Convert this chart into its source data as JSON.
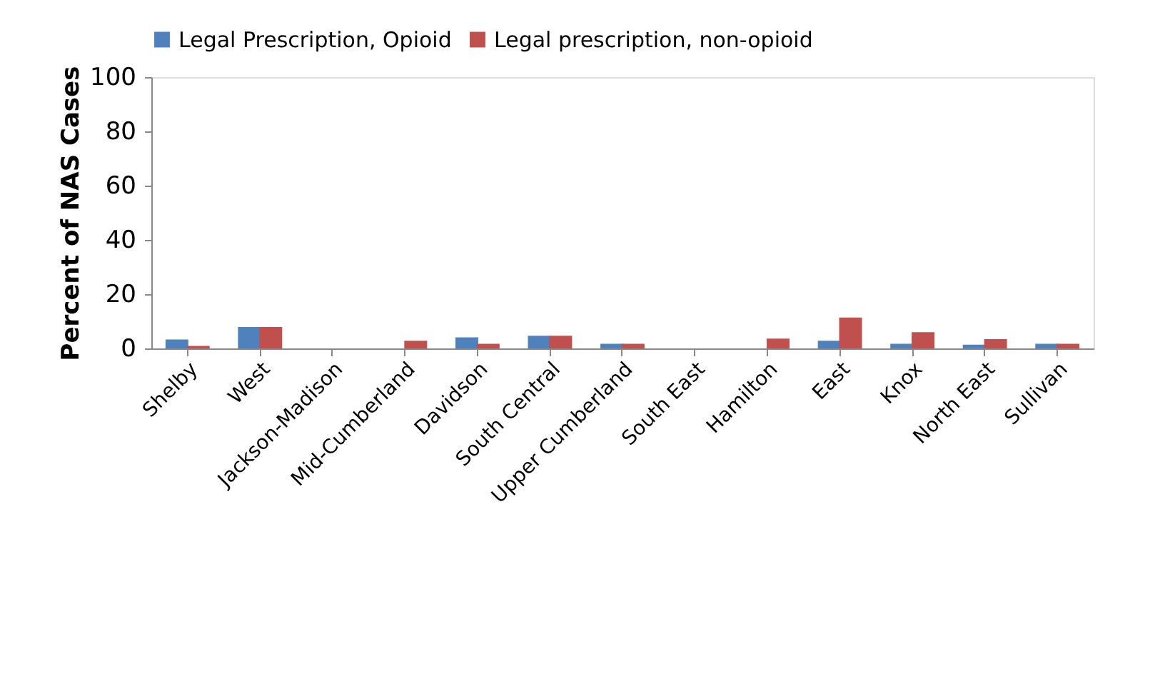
{
  "chart_data": {
    "type": "bar",
    "ylabel": "Percent of NAS Cases",
    "categories": [
      "Shelby",
      "West",
      "Jackson-Madison",
      "Mid-Cumberland",
      "Davidson",
      "South Central",
      "Upper Cumberland",
      "South East",
      "Hamilton",
      "East",
      "Knox",
      "North East",
      "Sullivan"
    ],
    "series": [
      {
        "name": "Legal Prescription, Opioid",
        "color": "#4f81bd",
        "values": [
          3.3,
          7.9,
          0,
          0,
          4.1,
          4.7,
          1.7,
          0,
          0,
          2.8,
          1.7,
          1.4,
          1.7
        ]
      },
      {
        "name": "Legal prescription, non-opioid",
        "color": "#c0504d",
        "values": [
          0.9,
          7.9,
          0,
          2.8,
          1.7,
          4.7,
          1.7,
          0,
          3.6,
          11.4,
          6.0,
          3.4,
          1.7
        ]
      }
    ],
    "ylim": [
      0,
      100
    ],
    "yticks": [
      0,
      20,
      40,
      60,
      80,
      100
    ],
    "grid": false,
    "legend": "top"
  }
}
